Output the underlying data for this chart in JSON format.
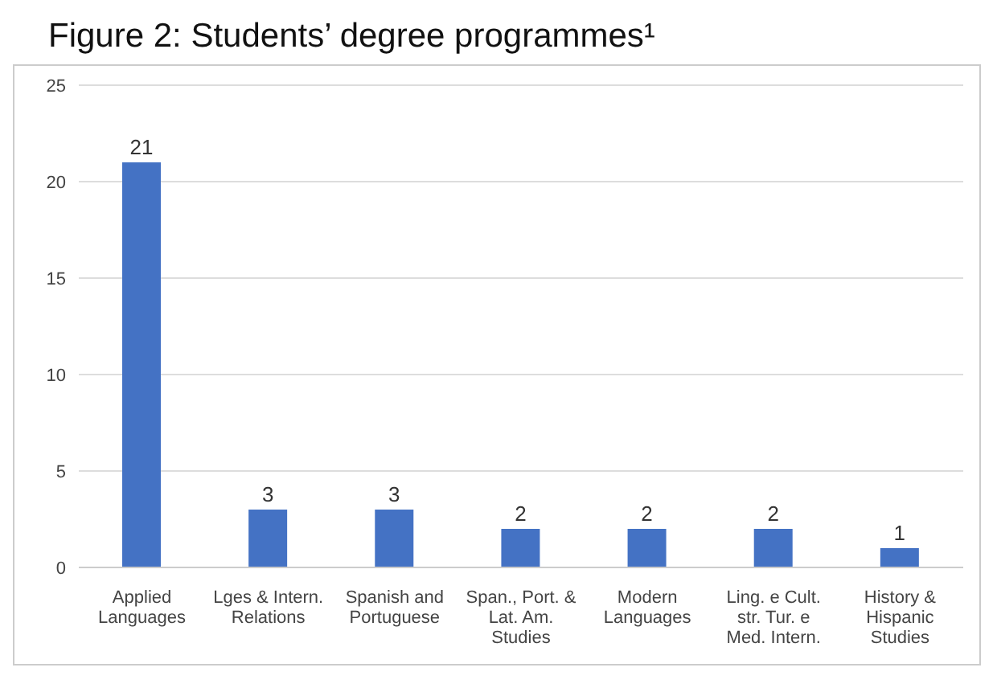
{
  "chart_data": {
    "type": "bar",
    "title": "Figure 2: Students’ degree programmes¹",
    "categories": [
      "Applied Languages",
      "Lges & Intern. Relations",
      "Spanish and Portuguese",
      "Span., Port. & Lat. Am. Studies",
      "Modern Languages",
      "Ling. e Cult. str. Tur. e Med. Intern.",
      "History & Hispanic Studies"
    ],
    "values": [
      21,
      3,
      3,
      2,
      2,
      2,
      1
    ],
    "color": "#4472c4",
    "ylim": [
      0,
      25
    ],
    "yticks": [
      0,
      5,
      10,
      15,
      20,
      25
    ],
    "grid": "y",
    "data_labels": true
  }
}
